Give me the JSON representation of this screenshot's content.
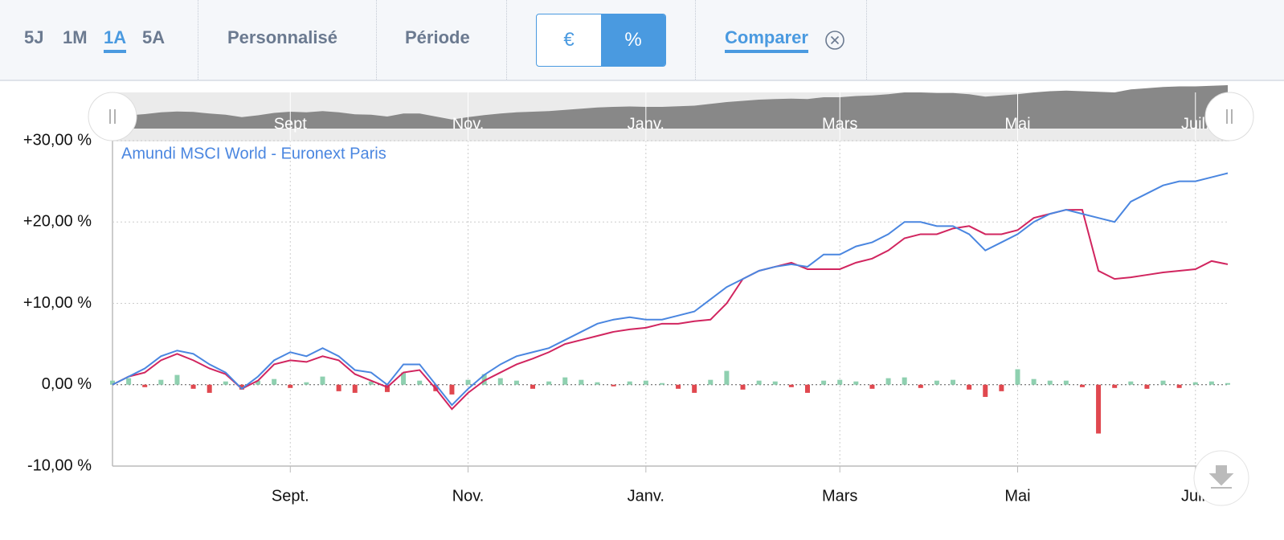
{
  "toolbar": {
    "ranges": [
      "5J",
      "1M",
      "1A",
      "5A"
    ],
    "active_range": "1A",
    "custom": "Personnalisé",
    "period": "Période",
    "units": [
      "€",
      "%"
    ],
    "compare": "Comparer"
  },
  "navigator": {
    "labels": [
      "Sept",
      "Nov.",
      "Janv.",
      "Mars",
      "Mai",
      "Juil."
    ]
  },
  "chart_data": {
    "type": "line",
    "categories": [
      null,
      null,
      null,
      null,
      null,
      null,
      null,
      null,
      null,
      null,
      null,
      "Sept.",
      null,
      null,
      null,
      null,
      null,
      null,
      null,
      null,
      null,
      null,
      "Nov.",
      null,
      null,
      null,
      null,
      null,
      null,
      null,
      null,
      null,
      null,
      "Janv.",
      null,
      null,
      null,
      null,
      null,
      null,
      null,
      null,
      null,
      null,
      null,
      "Mars",
      null,
      null,
      null,
      null,
      null,
      null,
      null,
      null,
      null,
      null,
      "Mai",
      null,
      null,
      null,
      null,
      null,
      null,
      null,
      null,
      null,
      null,
      "Juil.",
      null,
      null
    ],
    "series": [
      {
        "name": "Amundi MSCI World - Euronext Paris",
        "color": "#4a86e0",
        "values": [
          0,
          1,
          2,
          3.5,
          4.2,
          3.8,
          2.5,
          1.5,
          -0.5,
          1,
          3,
          4,
          3.5,
          4.5,
          3.5,
          1.8,
          1.5,
          0,
          2.5,
          2.5,
          0,
          -2.5,
          -0.5,
          1.2,
          2.5,
          3.5,
          4,
          4.5,
          5.5,
          6.5,
          7.5,
          8,
          8.3,
          8,
          8,
          8.5,
          9,
          10.5,
          12,
          13,
          14,
          14.5,
          14.8,
          14.5,
          16,
          16,
          17,
          17.5,
          18.5,
          20,
          20,
          19.5,
          19.5,
          18.5,
          16.5,
          17.5,
          18.5,
          20,
          21,
          21.5,
          21,
          20.5,
          20,
          22.5,
          23.5,
          24.5,
          25,
          25,
          25.5,
          26
        ]
      },
      {
        "color": "#d1255f",
        "values": [
          0,
          1,
          1.5,
          3,
          3.8,
          3,
          2,
          1.3,
          -0.5,
          0.5,
          2.5,
          3,
          2.8,
          3.5,
          3,
          1.3,
          0.5,
          -0.3,
          1.5,
          1.8,
          -0.5,
          -3,
          -1,
          0.5,
          1.5,
          2.5,
          3.2,
          4,
          5,
          5.5,
          6,
          6.5,
          6.8,
          7,
          7.5,
          7.5,
          7.8,
          8,
          10,
          13,
          14,
          14.5,
          15,
          14.2,
          14.2,
          14.2,
          15,
          15.5,
          16.5,
          18,
          18.5,
          18.5,
          19.2,
          19.5,
          18.5,
          18.5,
          19,
          20.5,
          21,
          21.5,
          21.5,
          14,
          13,
          13.2,
          13.5,
          13.8,
          14,
          14.2,
          15.2,
          14.8
        ]
      },
      {
        "type": "bar",
        "color": "#8fd0b0",
        "negative_color": "#e0484f",
        "values": [
          0.5,
          0.8,
          -0.3,
          0.6,
          1.2,
          -0.5,
          -1,
          0.4,
          -0.6,
          0.5,
          0.7,
          -0.4,
          0.3,
          1,
          -0.8,
          -1,
          0.4,
          -0.9,
          1.5,
          0.5,
          -0.8,
          -1.2,
          0.6,
          1.3,
          0.8,
          0.5,
          -0.5,
          0.4,
          0.9,
          0.6,
          0.3,
          -0.2,
          0.4,
          0.5,
          0.2,
          -0.5,
          -1,
          0.6,
          1.7,
          -0.6,
          0.5,
          0.4,
          -0.3,
          -1,
          0.5,
          0.6,
          0.4,
          -0.5,
          0.8,
          0.9,
          -0.4,
          0.5,
          0.6,
          -0.6,
          -1.5,
          -0.8,
          1.9,
          0.7,
          0.5,
          0.5,
          -0.3,
          -6,
          -0.4,
          0.4,
          -0.5,
          0.5,
          -0.4,
          0.3,
          0.4,
          0.2
        ]
      }
    ],
    "ylim": [
      -10,
      30
    ],
    "yticks": [
      {
        "value": -10,
        "label": "-10,00 %"
      },
      {
        "value": 0,
        "label": "0,00 %"
      },
      {
        "value": 10,
        "label": "+10,00 %"
      },
      {
        "value": 20,
        "label": "+20,00 %"
      },
      {
        "value": 30,
        "label": "+30,00 %"
      }
    ],
    "grid": true
  }
}
